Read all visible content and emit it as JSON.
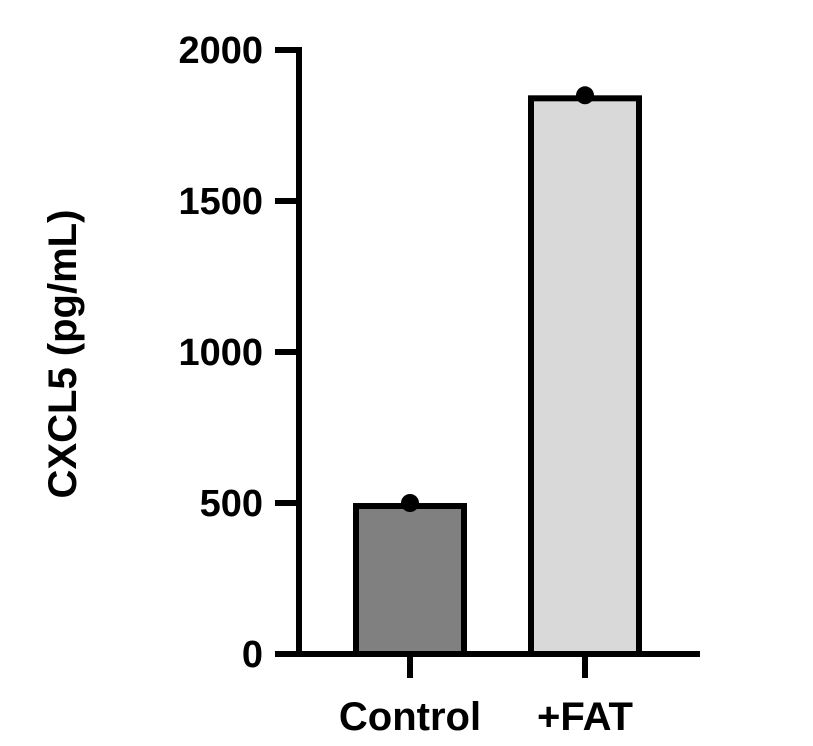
{
  "chart_data": {
    "type": "bar",
    "title": "",
    "xlabel": "",
    "ylabel": "CXCL5 (pg/mL)",
    "categories": [
      "Control",
      "+FAT"
    ],
    "values": [
      490,
      1840
    ],
    "points": [
      500,
      1850
    ],
    "bar_colors": [
      "#808080",
      "#d9d9d9"
    ],
    "ylim": [
      0,
      2000
    ],
    "yticks": [
      0,
      500,
      1000,
      1500,
      2000
    ],
    "ytick_labels": [
      "0",
      "500",
      "1000",
      "1500",
      "2000"
    ],
    "grid": false,
    "legend": "none"
  }
}
